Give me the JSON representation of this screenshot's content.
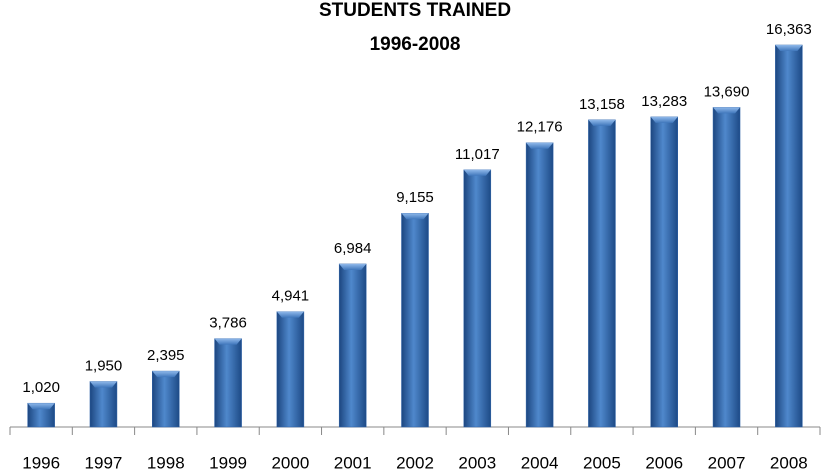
{
  "chart_data": {
    "type": "bar",
    "title": "STUDENTS TRAINED",
    "subtitle": "1996-2008",
    "categories": [
      "1996",
      "1997",
      "1998",
      "1999",
      "2000",
      "2001",
      "2002",
      "2003",
      "2004",
      "2005",
      "2006",
      "2007",
      "2008"
    ],
    "values": [
      1020,
      1950,
      2395,
      3786,
      4941,
      6984,
      9155,
      11017,
      12176,
      13158,
      13283,
      13690,
      16363
    ],
    "value_labels": [
      "1,020",
      "1,950",
      "2,395",
      "3,786",
      "4,941",
      "6,984",
      "9,155",
      "11,017",
      "12,176",
      "13,158",
      "13,283",
      "13,690",
      "16,363"
    ],
    "color": "#2f63a8"
  }
}
